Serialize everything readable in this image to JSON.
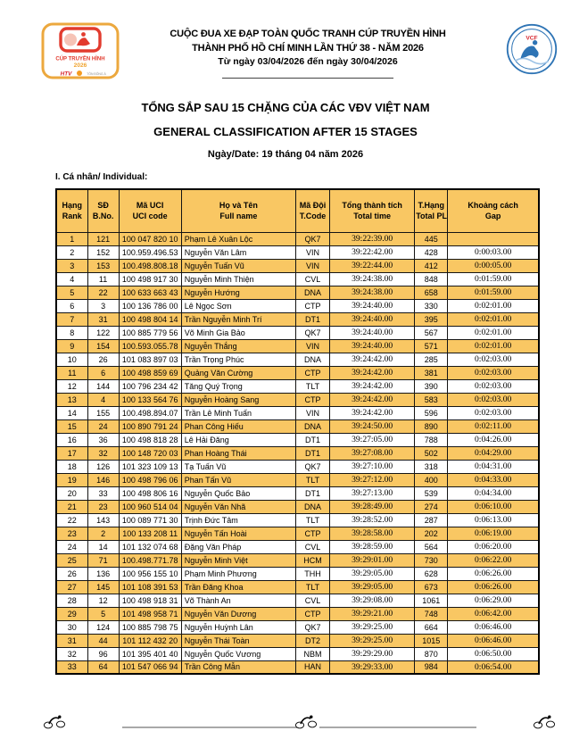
{
  "header": {
    "line1": "CUỘC ĐUA XE ĐẠP TOÀN QUỐC TRANH CÚP TRUYỀN HÌNH",
    "line2": "THÀNH PHỐ HỒ CHÍ MINH LẦN THỨ 38 - NĂM 2026",
    "line3": "Từ ngày 03/04/2026 đến ngày 30/04/2026",
    "left_logo": {
      "title": "CÚP TRUYỀN HÌNH",
      "year": "2026",
      "brand1": "HTV",
      "brand2": "TÔN ĐÔNG Á"
    },
    "right_logo": {
      "label": "VCF"
    }
  },
  "title": {
    "vi": "TỔNG SẮP SAU 15 CHẶNG CỦA CÁC VĐV VIỆT NAM",
    "en": "GENERAL CLASSIFICATION AFTER 15 STAGES",
    "date": "Ngày/Date: 19 tháng 04 năm 2026"
  },
  "section_label": "I. Cá nhân/ Individual:",
  "colors": {
    "row_highlight": "#F9C763",
    "table_border": "#000000",
    "signature_line": "#a9a9a9"
  },
  "table": {
    "headers": [
      {
        "vi": "Hạng",
        "en": "Rank"
      },
      {
        "vi": "SĐ",
        "en": "B.No."
      },
      {
        "vi": "Mã UCI",
        "en": "UCI code"
      },
      {
        "vi": "Họ và Tên",
        "en": "Full name"
      },
      {
        "vi": "Mã Đội",
        "en": "T.Code"
      },
      {
        "vi": "Tổng thành tích",
        "en": "Total time"
      },
      {
        "vi": "T.Hạng",
        "en": "Total PL"
      },
      {
        "vi": "Khoảng cách",
        "en": "Gap"
      }
    ],
    "rows": [
      [
        "1",
        "121",
        "100 047 820 10",
        "Phạm Lê Xuân Lộc",
        "QK7",
        "39:22:39.00",
        "445",
        ""
      ],
      [
        "2",
        "152",
        "100.959.496.53",
        "Nguyễn Văn Lâm",
        "VIN",
        "39:22:42.00",
        "428",
        "0:00:03.00"
      ],
      [
        "3",
        "153",
        "100.498.808.18",
        "Nguyễn Tuấn Vũ",
        "VIN",
        "39:22:44.00",
        "412",
        "0:00:05.00"
      ],
      [
        "4",
        "11",
        "100 498 917 30",
        "Nguyễn Minh Thiện",
        "CVL",
        "39:24:38.00",
        "848",
        "0:01:59.00"
      ],
      [
        "5",
        "22",
        "100 633 663 43",
        "Nguyễn Hướng",
        "DNA",
        "39:24:38.00",
        "658",
        "0:01:59.00"
      ],
      [
        "6",
        "3",
        "100 136 786 00",
        "Lê Ngọc Sơn",
        "CTP",
        "39:24:40.00",
        "330",
        "0:02:01.00"
      ],
      [
        "7",
        "31",
        "100 498 804 14",
        "Trần Nguyễn Minh Trí",
        "DT1",
        "39:24:40.00",
        "395",
        "0:02:01.00"
      ],
      [
        "8",
        "122",
        "100 885 779 56",
        "Võ Minh Gia Bảo",
        "QK7",
        "39:24:40.00",
        "567",
        "0:02:01.00"
      ],
      [
        "9",
        "154",
        "100.593.055.78",
        "Nguyễn Thắng",
        "VIN",
        "39:24:40.00",
        "571",
        "0:02:01.00"
      ],
      [
        "10",
        "26",
        "101 083 897 03",
        "Trần Trọng Phúc",
        "DNA",
        "39:24:42.00",
        "285",
        "0:02:03.00"
      ],
      [
        "11",
        "6",
        "100 498 859 69",
        "Quảng Văn Cường",
        "CTP",
        "39:24:42.00",
        "381",
        "0:02:03.00"
      ],
      [
        "12",
        "144",
        "100 796 234 42",
        "Tăng Quý Trọng",
        "TLT",
        "39:24:42.00",
        "390",
        "0:02:03.00"
      ],
      [
        "13",
        "4",
        "100 133 564 76",
        "Nguyễn Hoàng Sang",
        "CTP",
        "39:24:42.00",
        "583",
        "0:02:03.00"
      ],
      [
        "14",
        "155",
        "100.498.894.07",
        "Trần Lê Minh Tuấn",
        "VIN",
        "39:24:42.00",
        "596",
        "0:02:03.00"
      ],
      [
        "15",
        "24",
        "100 890 791 24",
        "Phan Công Hiếu",
        "DNA",
        "39:24:50.00",
        "890",
        "0:02:11.00"
      ],
      [
        "16",
        "36",
        "100 498 818 28",
        "Lê Hải Đăng",
        "DT1",
        "39:27:05.00",
        "788",
        "0:04:26.00"
      ],
      [
        "17",
        "32",
        "100 148 720 03",
        "Phan Hoàng Thái",
        "DT1",
        "39:27:08.00",
        "502",
        "0:04:29.00"
      ],
      [
        "18",
        "126",
        "101 323 109 13",
        "Tạ Tuấn Vũ",
        "QK7",
        "39:27:10.00",
        "318",
        "0:04:31.00"
      ],
      [
        "19",
        "146",
        "100 498 796 06",
        "Phan Tấn Vũ",
        "TLT",
        "39:27:12.00",
        "400",
        "0:04:33.00"
      ],
      [
        "20",
        "33",
        "100 498 806 16",
        "Nguyễn Quốc Bảo",
        "DT1",
        "39:27:13.00",
        "539",
        "0:04:34.00"
      ],
      [
        "21",
        "23",
        "100 960 514 04",
        "Nguyễn Văn Nhã",
        "DNA",
        "39:28:49.00",
        "274",
        "0:06:10.00"
      ],
      [
        "22",
        "143",
        "100 089 771 30",
        "Trịnh Đức Tâm",
        "TLT",
        "39:28:52.00",
        "287",
        "0:06:13.00"
      ],
      [
        "23",
        "2",
        "100 133 208 11",
        "Nguyễn Tấn Hoài",
        "CTP",
        "39:28:58.00",
        "202",
        "0:06:19.00"
      ],
      [
        "24",
        "14",
        "101 132 074 68",
        "Đặng Văn Pháp",
        "CVL",
        "39:28:59.00",
        "564",
        "0:06:20.00"
      ],
      [
        "25",
        "71",
        "100.498.771.78",
        "Nguyễn Minh Việt",
        "HCM",
        "39:29:01.00",
        "730",
        "0:06:22.00"
      ],
      [
        "26",
        "136",
        "100 956 155 10",
        "Phạm Minh Phương",
        "THH",
        "39:29:05.00",
        "628",
        "0:06:26.00"
      ],
      [
        "27",
        "145",
        "101 108 391 53",
        "Trần Đăng Khoa",
        "TLT",
        "39:29:05.00",
        "673",
        "0:06:26.00"
      ],
      [
        "28",
        "12",
        "100 498 918 31",
        "Võ Thành An",
        "CVL",
        "39:29:08.00",
        "1061",
        "0:06:29.00"
      ],
      [
        "29",
        "5",
        "101 498 958 71",
        "Nguyễn Văn Dương",
        "CTP",
        "39:29:21.00",
        "748",
        "0:06:42.00"
      ],
      [
        "30",
        "124",
        "100 885 798 75",
        "Nguyễn Huỳnh Lân",
        "QK7",
        "39:29:25.00",
        "664",
        "0:06:46.00"
      ],
      [
        "31",
        "44",
        "101 112 432 20",
        "Nguyễn Thái Toàn",
        "DT2",
        "39:29:25.00",
        "1015",
        "0:06:46.00"
      ],
      [
        "32",
        "96",
        "101 395 401 40",
        "Nguyễn Quốc Vương",
        "NBM",
        "39:29:29.00",
        "870",
        "0:06:50.00"
      ],
      [
        "33",
        "64",
        "101 547 066 94",
        "Trần Công Mẫn",
        "HAN",
        "39:29:33.00",
        "984",
        "0:06:54.00"
      ]
    ]
  }
}
